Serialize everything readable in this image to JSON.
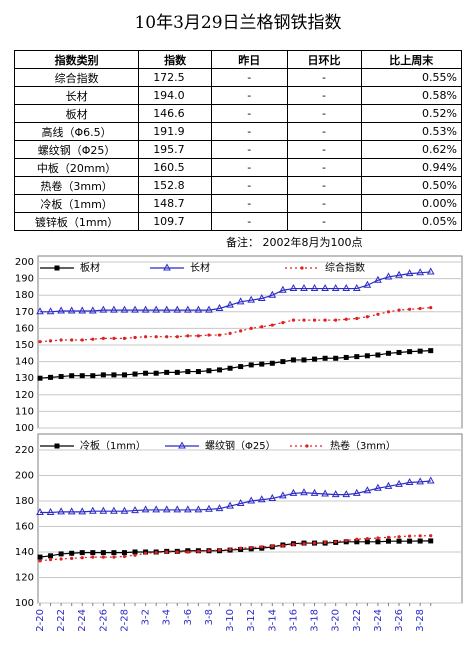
{
  "title": "10年3月29日兰格钢铁指数",
  "table": {
    "header": [
      "指数类别",
      "指数",
      "昨日",
      "日环比",
      "比上周末"
    ],
    "rows": [
      [
        "综合指数",
        "172.5",
        "-",
        "-",
        "0.55%"
      ],
      [
        "长材",
        "194.0",
        "-",
        "-",
        "0.58%"
      ],
      [
        "板材",
        "146.6",
        "-",
        "-",
        "0.52%"
      ],
      [
        "高线（Φ6.5）",
        "191.9",
        "-",
        "-",
        "0.53%"
      ],
      [
        "螺纹钢（Φ25）",
        "195.7",
        "-",
        "-",
        "0.62%"
      ],
      [
        "中板（20mm）",
        "160.5",
        "-",
        "-",
        "0.94%"
      ],
      [
        "热卷（3mm）",
        "152.8",
        "-",
        "-",
        "0.50%"
      ],
      [
        "冷板（1mm）",
        "148.7",
        "-",
        "-",
        "0.00%"
      ],
      [
        "镀锌板（1mm）",
        "109.7",
        "-",
        "-",
        "0.05%"
      ]
    ]
  },
  "note": "备注： 2002年8月为100点",
  "chart_data": [
    {
      "type": "line",
      "ylim": [
        100,
        200
      ],
      "yticks": [
        100,
        110,
        120,
        130,
        140,
        150,
        160,
        170,
        180,
        190,
        200
      ],
      "grid": true,
      "series": [
        {
          "name": "板材",
          "color": "#000000",
          "marker": "square",
          "line_style": "solid",
          "values": [
            130,
            130.5,
            131,
            131.5,
            131.5,
            131.5,
            132,
            132,
            132,
            132.5,
            133,
            133,
            133.5,
            133.5,
            134,
            134,
            134.5,
            135,
            136,
            137,
            138,
            138.5,
            139,
            140,
            141,
            141,
            141.5,
            142,
            142,
            142.5,
            143,
            143.5,
            144,
            145,
            145.5,
            146,
            146.3,
            146.6
          ]
        },
        {
          "name": "长材",
          "color": "#2b2bc8",
          "marker": "triangle",
          "line_style": "solid",
          "values": [
            170,
            170,
            170.5,
            170.5,
            170.5,
            170.5,
            171,
            171,
            171,
            171,
            171,
            171,
            171,
            171,
            171,
            171,
            171,
            172,
            174,
            176,
            177,
            178,
            180,
            183,
            184,
            184,
            184,
            184,
            184,
            184,
            184,
            186,
            189,
            191,
            192,
            193,
            193.5,
            194
          ]
        },
        {
          "name": "综合指数",
          "color": "#e02020",
          "marker": "dot",
          "line_style": "dotted",
          "values": [
            152,
            152.5,
            153,
            153,
            153,
            153.5,
            154,
            154,
            154,
            154.5,
            155,
            155,
            155,
            155,
            155.5,
            155.5,
            156,
            156,
            157,
            158.5,
            160,
            161,
            162,
            163.5,
            165,
            165,
            165,
            165,
            165,
            165.5,
            166,
            167,
            168.5,
            170,
            171,
            171.5,
            172,
            172.5
          ]
        }
      ]
    },
    {
      "type": "line",
      "ylim": [
        100,
        220
      ],
      "yticks": [
        100,
        120,
        140,
        160,
        180,
        200,
        220
      ],
      "grid": true,
      "categories": [
        "2-20",
        null,
        "2-22",
        null,
        "2-24",
        null,
        "2-26",
        null,
        "2-28",
        null,
        "3-2",
        null,
        "3-4",
        null,
        "3-6",
        null,
        "3-8",
        null,
        "3-10",
        null,
        "3-12",
        null,
        "3-14",
        null,
        "3-16",
        null,
        "3-18",
        null,
        "3-20",
        null,
        "3-22",
        null,
        "3-24",
        null,
        "3-26",
        null,
        "3-28",
        null
      ],
      "series": [
        {
          "name": "冷板（1mm）",
          "color": "#000000",
          "marker": "square",
          "line_style": "solid",
          "values": [
            136,
            137,
            138.5,
            139,
            139.5,
            139.5,
            139.5,
            139.5,
            139.5,
            140,
            140,
            140,
            140.5,
            140.5,
            141,
            141,
            141,
            141,
            141.5,
            142,
            142.5,
            143,
            144,
            145.5,
            146.5,
            147,
            147,
            147,
            147.5,
            148,
            148,
            148,
            148,
            148.5,
            148.5,
            148.5,
            148.6,
            148.7
          ]
        },
        {
          "name": "螺纹钢（Φ25）",
          "color": "#2b2bc8",
          "marker": "triangle",
          "line_style": "solid",
          "values": [
            171,
            171,
            171.5,
            171.5,
            171.5,
            172,
            172,
            172,
            172,
            172.5,
            173,
            173,
            173,
            173,
            173,
            173,
            173.5,
            174,
            176,
            178,
            180,
            181,
            182,
            184,
            186,
            186.5,
            186,
            185.5,
            185,
            185,
            186,
            188,
            190,
            191.5,
            193,
            194.5,
            195,
            195.7
          ]
        },
        {
          "name": "热卷（3mm）",
          "color": "#e02020",
          "marker": "dot",
          "line_style": "dotted",
          "values": [
            133,
            134,
            134.5,
            135,
            135.5,
            136,
            136,
            136,
            136.5,
            137.5,
            139,
            139.5,
            140,
            140,
            140,
            140.5,
            141,
            141.5,
            142,
            143,
            143.5,
            144,
            144.5,
            145,
            146,
            146.5,
            147,
            147.5,
            148,
            149,
            150,
            150.5,
            151,
            151.5,
            152,
            152.5,
            152.7,
            152.8
          ]
        }
      ]
    }
  ]
}
